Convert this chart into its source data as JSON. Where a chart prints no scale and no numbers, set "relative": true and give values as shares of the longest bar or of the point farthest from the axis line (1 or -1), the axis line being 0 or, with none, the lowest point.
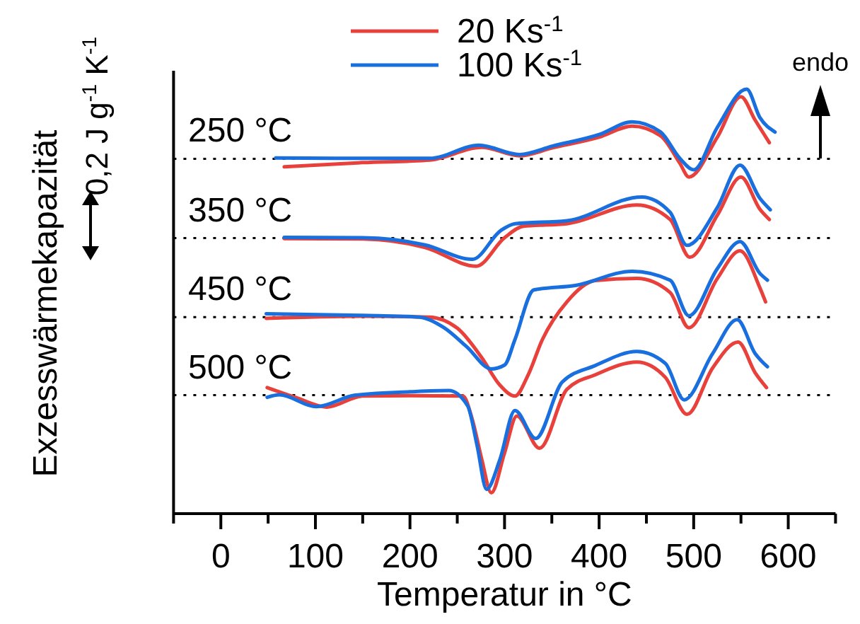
{
  "chart_data": {
    "type": "line",
    "xlabel": "Temperatur in °C",
    "ylabel": "Exzesswärmekapazität",
    "relative": true,
    "legend": "top",
    "line_style": "solid",
    "xlim": [
      -50,
      650
    ],
    "xticks": [
      {
        "value": -50,
        "label": null
      },
      0,
      {
        "value": 50,
        "label": null
      },
      100,
      {
        "value": 150,
        "label": null
      },
      200,
      {
        "value": 250,
        "label": null
      },
      300,
      {
        "value": 350,
        "label": null
      },
      400,
      {
        "value": 450,
        "label": null
      },
      500,
      {
        "value": 550,
        "label": null
      },
      600,
      {
        "value": 650,
        "label": null
      }
    ],
    "annotations": [
      "0,2 J g$^{-1}$ K$^{-1}$",
      "endo"
    ],
    "ref_lines": [
      {
        "axis": "y",
        "value": 0.836,
        "label": "250 °C",
        "line_style": "dotted"
      },
      {
        "axis": "y",
        "value": 0.649,
        "label": "350 °C",
        "line_style": "dotted"
      },
      {
        "axis": "y",
        "value": 0.463,
        "label": "450 °C",
        "line_style": "dotted"
      },
      {
        "axis": "y",
        "value": 0.279,
        "label": "500 °C",
        "line_style": "dotted"
      }
    ],
    "series": [
      {
        "name": "20 Ks$^{-1}$",
        "color": "#e8413c",
        "x": [
          67,
          150,
          221,
          276,
          316,
          351,
          400,
          435,
          465,
          485,
          495,
          525,
          550,
          565,
          580
        ],
        "values": [
          0.817,
          0.827,
          0.833,
          0.863,
          0.843,
          0.862,
          0.887,
          0.913,
          0.89,
          0.827,
          0.793,
          0.887,
          0.982,
          0.927,
          0.874
        ]
      },
      {
        "name": "100 Ks$^{-1}$",
        "color": "#1a6fdf",
        "x": [
          58,
          150,
          221,
          273,
          316,
          351,
          400,
          435,
          465,
          485,
          500,
          525,
          556,
          570,
          586
        ],
        "values": [
          0.838,
          0.837,
          0.837,
          0.868,
          0.846,
          0.866,
          0.893,
          0.923,
          0.899,
          0.838,
          0.81,
          0.91,
          1.0,
          0.933,
          0.899
        ]
      },
      {
        "color": "#e8413c",
        "x": [
          67,
          150,
          216,
          270,
          300,
          320,
          366,
          440,
          475,
          496,
          525,
          550,
          570,
          580
        ],
        "values": [
          0.648,
          0.647,
          0.627,
          0.583,
          0.65,
          0.677,
          0.683,
          0.727,
          0.693,
          0.604,
          0.703,
          0.793,
          0.717,
          0.693
        ]
      },
      {
        "color": "#1a6fdf",
        "x": [
          67,
          150,
          216,
          266,
          296,
          311,
          366,
          445,
          475,
          493,
          525,
          549,
          570,
          581
        ],
        "values": [
          0.651,
          0.65,
          0.633,
          0.599,
          0.667,
          0.683,
          0.69,
          0.746,
          0.71,
          0.632,
          0.721,
          0.821,
          0.743,
          0.716
        ]
      },
      {
        "color": "#e8413c",
        "x": [
          48,
          150,
          220,
          250,
          276,
          295,
          311,
          325,
          340,
          366,
          396,
          440,
          475,
          495,
          525,
          549,
          570,
          576
        ],
        "values": [
          0.46,
          0.465,
          0.463,
          0.437,
          0.367,
          0.303,
          0.277,
          0.327,
          0.41,
          0.499,
          0.549,
          0.554,
          0.521,
          0.438,
          0.554,
          0.619,
          0.532,
          0.499
        ]
      },
      {
        "color": "#1a6fdf",
        "x": [
          48,
          150,
          210,
          236,
          260,
          286,
          300,
          311,
          331,
          376,
          435,
          475,
          495,
          525,
          549,
          570,
          578
        ],
        "values": [
          0.471,
          0.467,
          0.463,
          0.438,
          0.393,
          0.341,
          0.35,
          0.41,
          0.527,
          0.538,
          0.571,
          0.55,
          0.466,
          0.577,
          0.641,
          0.566,
          0.55
        ]
      },
      {
        "color": "#e8413c",
        "x": [
          49,
          80,
          112,
          150,
          200,
          256,
          266,
          276,
          286,
          300,
          313,
          337,
          366,
          396,
          440,
          470,
          493,
          520,
          547,
          565,
          577
        ],
        "values": [
          0.297,
          0.273,
          0.251,
          0.277,
          0.278,
          0.277,
          0.221,
          0.127,
          0.049,
          0.143,
          0.23,
          0.154,
          0.293,
          0.327,
          0.357,
          0.321,
          0.234,
          0.343,
          0.404,
          0.332,
          0.297
        ]
      },
      {
        "color": "#1a6fdf",
        "x": [
          49,
          62,
          101,
          142,
          200,
          241,
          261,
          271,
          281,
          295,
          311,
          333,
          361,
          396,
          440,
          470,
          490,
          520,
          546,
          565,
          578
        ],
        "values": [
          0.274,
          0.28,
          0.252,
          0.279,
          0.287,
          0.29,
          0.254,
          0.16,
          0.057,
          0.127,
          0.243,
          0.177,
          0.31,
          0.349,
          0.382,
          0.354,
          0.268,
          0.377,
          0.457,
          0.377,
          0.346
        ]
      }
    ]
  }
}
